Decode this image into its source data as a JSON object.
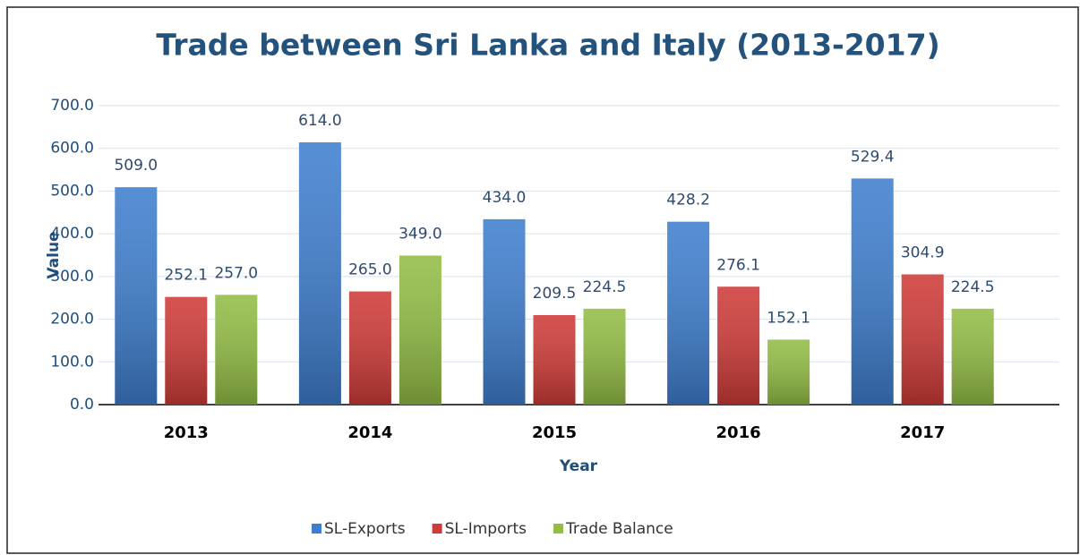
{
  "chart_data": {
    "type": "bar",
    "title": "Trade between Sri Lanka and Italy (2013-2017)",
    "x_label": "Year",
    "y_label": "Value",
    "categories": [
      "2013",
      "2014",
      "2015",
      "2016",
      "2017"
    ],
    "series": [
      {
        "name": "SL-Exports",
        "color": "#3f7fcf",
        "values": [
          509.0,
          614.0,
          434.0,
          428.2,
          529.4
        ],
        "value_labels": [
          "509.0",
          "614.0",
          "434.0",
          "428.2",
          "529.4"
        ]
      },
      {
        "name": "SL-Imports",
        "color": "#cf3b38",
        "values": [
          252.1,
          265.0,
          209.5,
          276.1,
          304.9
        ],
        "value_labels": [
          "252.1",
          "265.0",
          "209.5",
          "276.1",
          "304.9"
        ]
      },
      {
        "name": "Trade Balance",
        "color": "#93bd45",
        "values": [
          257.0,
          349.0,
          224.5,
          152.1,
          224.5
        ],
        "value_labels": [
          "257.0",
          "349.0",
          "224.5",
          "152.1",
          "224.5"
        ]
      }
    ],
    "ylim": [
      0,
      700
    ],
    "yticks": [
      {
        "value": 0,
        "label": "0.0"
      },
      {
        "value": 100,
        "label": "100.0"
      },
      {
        "value": 200,
        "label": "200.0"
      },
      {
        "value": 300,
        "label": "300.0"
      },
      {
        "value": 400,
        "label": "400.0"
      },
      {
        "value": 500,
        "label": "500.0"
      },
      {
        "value": 600,
        "label": "600.0"
      },
      {
        "value": 700,
        "label": "700.0"
      }
    ],
    "grid": true,
    "legend": "bottom"
  }
}
